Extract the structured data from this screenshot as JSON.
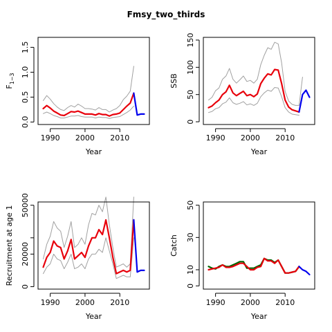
{
  "figure": {
    "title": "Fmsy_two_thirds"
  },
  "colors": {
    "estimate": "#E8000B",
    "projection": "#0000EE",
    "bounds": "#A0A0A0",
    "observed": "#006400",
    "axis": "#000000"
  },
  "chart_data": [
    {
      "type": "line",
      "ylabel": "F",
      "ylabel_sub": "1−3",
      "xlabel": "Year",
      "xlim": [
        1986.5,
        2018.5
      ],
      "ylim": [
        -0.05,
        1.7
      ],
      "xticks": [
        1990,
        2000,
        2010
      ],
      "yticks": [
        0.0,
        0.5,
        1.0,
        1.5
      ],
      "ytick_labels": [
        "0.0",
        "0.5",
        "1.0",
        "1.5"
      ],
      "series": [
        {
          "role": "estimate",
          "x": [
            1988,
            1989,
            1990,
            1991,
            1992,
            1993,
            1994,
            1995,
            1996,
            1997,
            1998,
            1999,
            2000,
            2001,
            2002,
            2003,
            2004,
            2005,
            2006,
            2007,
            2008,
            2009,
            2010,
            2011,
            2012,
            2013,
            2014
          ],
          "values": [
            0.27,
            0.33,
            0.28,
            0.22,
            0.18,
            0.14,
            0.13,
            0.17,
            0.21,
            0.2,
            0.22,
            0.19,
            0.16,
            0.16,
            0.16,
            0.14,
            0.17,
            0.15,
            0.15,
            0.12,
            0.15,
            0.16,
            0.18,
            0.25,
            0.32,
            0.38,
            0.58
          ]
        },
        {
          "role": "upper",
          "x": [
            1988,
            1989,
            1990,
            1991,
            1992,
            1993,
            1994,
            1995,
            1996,
            1997,
            1998,
            1999,
            2000,
            2001,
            2002,
            2003,
            2004,
            2005,
            2006,
            2007,
            2008,
            2009,
            2010,
            2011,
            2012,
            2013,
            2014
          ],
          "values": [
            0.43,
            0.53,
            0.46,
            0.37,
            0.3,
            0.25,
            0.23,
            0.29,
            0.33,
            0.3,
            0.36,
            0.32,
            0.27,
            0.27,
            0.26,
            0.24,
            0.29,
            0.25,
            0.25,
            0.2,
            0.24,
            0.27,
            0.33,
            0.45,
            0.52,
            0.62,
            1.12
          ]
        },
        {
          "role": "lower",
          "x": [
            1988,
            1989,
            1990,
            1991,
            1992,
            1993,
            1994,
            1995,
            1996,
            1997,
            1998,
            1999,
            2000,
            2001,
            2002,
            2003,
            2004,
            2005,
            2006,
            2007,
            2008,
            2009,
            2010,
            2011,
            2012,
            2013,
            2014
          ],
          "values": [
            0.17,
            0.2,
            0.17,
            0.13,
            0.11,
            0.08,
            0.08,
            0.1,
            0.12,
            0.12,
            0.13,
            0.11,
            0.1,
            0.1,
            0.1,
            0.08,
            0.1,
            0.09,
            0.09,
            0.07,
            0.09,
            0.1,
            0.11,
            0.15,
            0.19,
            0.24,
            0.32
          ]
        },
        {
          "role": "projection",
          "x": [
            2014,
            2015,
            2016,
            2017
          ],
          "values": [
            0.58,
            0.14,
            0.16,
            0.16
          ]
        }
      ]
    },
    {
      "type": "line",
      "ylabel": "SSB",
      "xlabel": "Year",
      "xlim": [
        1986.5,
        2018.5
      ],
      "ylim": [
        -5,
        155
      ],
      "xticks": [
        1990,
        2000,
        2010
      ],
      "yticks": [
        0,
        50,
        100,
        150
      ],
      "ytick_labels": [
        "0",
        "50",
        "100",
        "150"
      ],
      "series": [
        {
          "role": "estimate",
          "x": [
            1988,
            1989,
            1990,
            1991,
            1992,
            1993,
            1994,
            1995,
            1996,
            1997,
            1998,
            1999,
            2000,
            2001,
            2002,
            2003,
            2004,
            2005,
            2006,
            2007,
            2008,
            2009,
            2010,
            2011,
            2012,
            2013,
            2014
          ],
          "values": [
            26,
            29,
            35,
            40,
            50,
            55,
            67,
            53,
            48,
            52,
            56,
            48,
            50,
            46,
            51,
            70,
            80,
            88,
            86,
            96,
            95,
            70,
            40,
            27,
            22,
            20,
            18
          ]
        },
        {
          "role": "upper",
          "x": [
            1988,
            1989,
            1990,
            1991,
            1992,
            1993,
            1994,
            1995,
            1996,
            1997,
            1998,
            1999,
            2000,
            2001,
            2002,
            2003,
            2004,
            2005,
            2006,
            2007,
            2008,
            2009,
            2010,
            2011,
            2012,
            2013,
            2014,
            2015
          ],
          "values": [
            40,
            45,
            57,
            62,
            78,
            84,
            98,
            78,
            71,
            77,
            84,
            74,
            76,
            71,
            78,
            105,
            122,
            136,
            133,
            146,
            143,
            108,
            56,
            38,
            32,
            30,
            30,
            82
          ]
        },
        {
          "role": "lower",
          "x": [
            1988,
            1989,
            1990,
            1991,
            1992,
            1993,
            1994,
            1995,
            1996,
            1997,
            1998,
            1999,
            2000,
            2001,
            2002,
            2003,
            2004,
            2005,
            2006,
            2007,
            2008,
            2009,
            2010,
            2011,
            2012,
            2013,
            2014
          ],
          "values": [
            17,
            19,
            24,
            26,
            33,
            36,
            44,
            35,
            32,
            34,
            37,
            31,
            33,
            30,
            34,
            46,
            53,
            58,
            56,
            63,
            62,
            46,
            26,
            18,
            14,
            13,
            12
          ]
        },
        {
          "role": "projection",
          "x": [
            2014,
            2015,
            2016,
            2017
          ],
          "values": [
            18,
            50,
            58,
            45
          ]
        }
      ]
    },
    {
      "type": "line",
      "ylabel": "Recruitment at age 1",
      "xlabel": "Year",
      "xlim": [
        1986.5,
        2018.5
      ],
      "ylim": [
        -1500,
        52000
      ],
      "xticks": [
        1990,
        2000,
        2010
      ],
      "yticks": [
        0,
        20000,
        30000,
        50000
      ],
      "ytick_labels": [
        "0",
        "20000",
        "",
        "50000"
      ],
      "series": [
        {
          "role": "estimate",
          "x": [
            1988,
            1989,
            1990,
            1991,
            1992,
            1993,
            1994,
            1995,
            1996,
            1997,
            1998,
            1999,
            2000,
            2001,
            2002,
            2003,
            2004,
            2005,
            2006,
            2007,
            2008,
            2009,
            2010,
            2011,
            2012,
            2013,
            2014
          ],
          "values": [
            12000,
            18000,
            21000,
            28000,
            25000,
            24000,
            17000,
            22000,
            29000,
            17000,
            19000,
            21000,
            18000,
            25000,
            30000,
            30000,
            35000,
            32000,
            41000,
            30000,
            18000,
            8000,
            9000,
            10000,
            9000,
            10000,
            41000
          ]
        },
        {
          "role": "upper",
          "x": [
            1988,
            1989,
            1990,
            1991,
            1992,
            1993,
            1994,
            1995,
            1996,
            1997,
            1998,
            1999,
            2000,
            2001,
            2002,
            2003,
            2004,
            2005,
            2006,
            2007,
            2008,
            2009,
            2010,
            2011,
            2012,
            2013,
            2014
          ],
          "values": [
            17000,
            26000,
            31000,
            40000,
            36000,
            34000,
            24000,
            31000,
            40000,
            24000,
            26000,
            30000,
            26000,
            38000,
            45000,
            44000,
            50000,
            46000,
            55000,
            38000,
            24000,
            12000,
            13000,
            14000,
            12000,
            14000,
            55000
          ]
        },
        {
          "role": "lower",
          "x": [
            1988,
            1989,
            1990,
            1991,
            1992,
            1993,
            1994,
            1995,
            1996,
            1997,
            1998,
            1999,
            2000,
            2001,
            2002,
            2003,
            2004,
            2005,
            2006,
            2007,
            2008,
            2009,
            2010,
            2011,
            2012,
            2013,
            2014
          ],
          "values": [
            8000,
            12000,
            14000,
            20000,
            17000,
            16000,
            11000,
            15000,
            20000,
            11000,
            12000,
            14000,
            11000,
            17000,
            20000,
            20000,
            23000,
            21000,
            30000,
            22000,
            14000,
            5000,
            6000,
            7000,
            6000,
            6000,
            30000
          ]
        },
        {
          "role": "projection",
          "x": [
            2014,
            2015,
            2016,
            2017
          ],
          "values": [
            41000,
            9000,
            10000,
            10000
          ]
        }
      ]
    },
    {
      "type": "line",
      "ylabel": "Catch",
      "xlabel": "Year",
      "xlim": [
        1986.5,
        2018.5
      ],
      "ylim": [
        -2,
        52
      ],
      "xticks": [
        1990,
        2000,
        2010
      ],
      "yticks": [
        0,
        10,
        30,
        50
      ],
      "ytick_labels": [
        "0",
        "10",
        "30",
        "50"
      ],
      "series": [
        {
          "role": "estimate",
          "x": [
            1988,
            1989,
            1990,
            1991,
            1992,
            1993,
            1994,
            1995,
            1996,
            1997,
            1998,
            1999,
            2000,
            2001,
            2002,
            2003,
            2004,
            2005,
            2006,
            2007,
            2008,
            2009,
            2010,
            2011,
            2012,
            2013,
            2014
          ],
          "values": [
            10,
            10.5,
            11,
            11.5,
            13,
            11.5,
            11.5,
            12,
            13,
            14,
            14,
            12,
            10,
            10,
            11.5,
            12,
            17,
            15.5,
            15.5,
            14,
            16,
            12,
            8,
            8,
            8.5,
            9,
            12
          ]
        },
        {
          "role": "observed",
          "x": [
            1988,
            1989,
            1990,
            1991,
            1992,
            1993,
            1994,
            1995,
            1996,
            1997,
            1998,
            1999,
            2000,
            2001,
            2002,
            2003,
            2004,
            2005,
            2006,
            2007,
            2008,
            2009,
            2010,
            2011,
            2012,
            2013,
            2014
          ],
          "values": [
            12,
            11,
            10.5,
            12,
            13,
            12,
            12,
            13,
            14,
            15,
            15,
            11,
            11,
            11,
            12,
            13,
            17,
            16,
            16,
            14.5,
            16,
            12,
            8,
            8,
            8.5,
            9,
            12
          ]
        },
        {
          "role": "projection",
          "x": [
            2014,
            2015,
            2016,
            2017
          ],
          "values": [
            12,
            10,
            9,
            7
          ]
        }
      ]
    }
  ]
}
